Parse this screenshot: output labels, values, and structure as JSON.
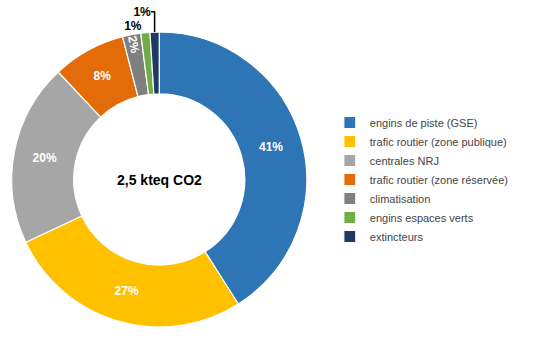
{
  "chart_data": {
    "type": "pie",
    "title": "2,5 kteq CO2",
    "categories": [
      "engins de piste (GSE)",
      "trafic routier (zone publique)",
      "centrales NRJ",
      "trafic routier (zone réservée)",
      "climatisation",
      "engins espaces verts",
      "extincteurs"
    ],
    "values": [
      41,
      27,
      20,
      8,
      2,
      1,
      1
    ],
    "value_labels": [
      "41%",
      "27%",
      "20%",
      "8%",
      "2%",
      "1%",
      "1%"
    ],
    "colors": [
      "#2E75B6",
      "#FFC000",
      "#A6A6A6",
      "#E36C09",
      "#7F7F7F",
      "#70AD47",
      "#1F3864"
    ],
    "data_labels": true,
    "legend": "right"
  }
}
